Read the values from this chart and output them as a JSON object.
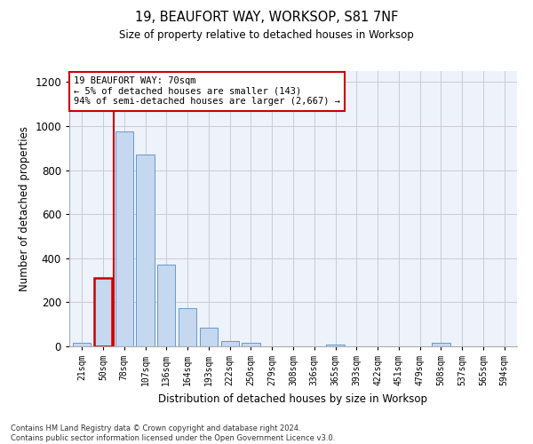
{
  "title1": "19, BEAUFORT WAY, WORKSOP, S81 7NF",
  "title2": "Size of property relative to detached houses in Worksop",
  "xlabel": "Distribution of detached houses by size in Worksop",
  "ylabel": "Number of detached properties",
  "footnote": "Contains HM Land Registry data © Crown copyright and database right 2024.\nContains public sector information licensed under the Open Government Licence v3.0.",
  "annotation_line1": "19 BEAUFORT WAY: 70sqm",
  "annotation_line2": "← 5% of detached houses are smaller (143)",
  "annotation_line3": "94% of semi-detached houses are larger (2,667) →",
  "bar_color": "#c5d8f0",
  "bar_edge_color": "#6699cc",
  "highlight_bar_color": "#cc0000",
  "grid_color": "#cccccc",
  "background_color": "#edf2fb",
  "categories": [
    "21sqm",
    "50sqm",
    "78sqm",
    "107sqm",
    "136sqm",
    "164sqm",
    "193sqm",
    "222sqm",
    "250sqm",
    "279sqm",
    "308sqm",
    "336sqm",
    "365sqm",
    "393sqm",
    "422sqm",
    "451sqm",
    "479sqm",
    "508sqm",
    "537sqm",
    "565sqm",
    "594sqm"
  ],
  "values": [
    15,
    310,
    975,
    870,
    370,
    175,
    85,
    25,
    15,
    0,
    0,
    0,
    10,
    0,
    0,
    0,
    0,
    15,
    0,
    0,
    0
  ],
  "ylim": [
    0,
    1250
  ],
  "yticks": [
    0,
    200,
    400,
    600,
    800,
    1000,
    1200
  ],
  "highlight_bar_index": 1,
  "vline_x": 1.5
}
